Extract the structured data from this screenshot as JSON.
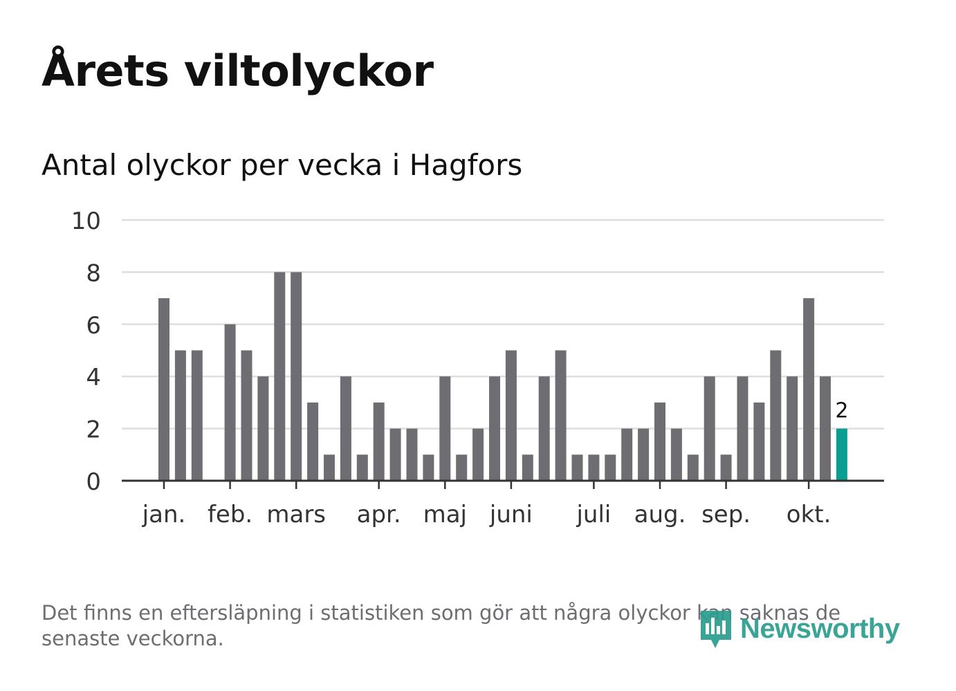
{
  "header": {
    "title": "Årets viltolyckor"
  },
  "chart_data": {
    "type": "bar",
    "title": "Antal olyckor per vecka i Hagfors",
    "xlabel": "",
    "ylabel": "",
    "ylim": [
      0,
      10
    ],
    "yticks": [
      "0",
      "2",
      "4",
      "6",
      "8",
      "10"
    ],
    "month_labels": [
      {
        "label": "jan.",
        "week": 1
      },
      {
        "label": "feb.",
        "week": 5
      },
      {
        "label": "mars",
        "week": 9
      },
      {
        "label": "apr.",
        "week": 14
      },
      {
        "label": "maj",
        "week": 18
      },
      {
        "label": "juni",
        "week": 22
      },
      {
        "label": "juli",
        "week": 27
      },
      {
        "label": "aug.",
        "week": 31
      },
      {
        "label": "sep.",
        "week": 35
      },
      {
        "label": "okt.",
        "week": 40
      }
    ],
    "weeks": [
      1,
      2,
      3,
      4,
      5,
      6,
      7,
      8,
      9,
      10,
      11,
      12,
      13,
      14,
      15,
      16,
      17,
      18,
      19,
      20,
      21,
      22,
      23,
      24,
      25,
      26,
      27,
      28,
      29,
      30,
      31,
      32,
      33,
      34,
      35,
      36,
      37,
      38,
      39,
      40,
      41,
      42
    ],
    "values": [
      7,
      5,
      5,
      0,
      6,
      5,
      4,
      8,
      8,
      3,
      1,
      4,
      1,
      3,
      2,
      2,
      1,
      4,
      1,
      2,
      4,
      5,
      1,
      4,
      5,
      1,
      1,
      1,
      2,
      2,
      3,
      2,
      1,
      4,
      1,
      4,
      3,
      5,
      4,
      7,
      4,
      2
    ],
    "highlight_index": 41,
    "highlight_label": "2",
    "bar_color": "#6e6d72",
    "highlight_color": "#0a9e93",
    "grid": true
  },
  "footer": {
    "note": "Det finns en eftersläpning i statistiken som gör att några olyckor kan saknas de senaste veckorna.",
    "logo_text": "Newsworthy",
    "logo_icon": "newsworthy-logo-icon",
    "logo_color": "#2a9d8f"
  }
}
